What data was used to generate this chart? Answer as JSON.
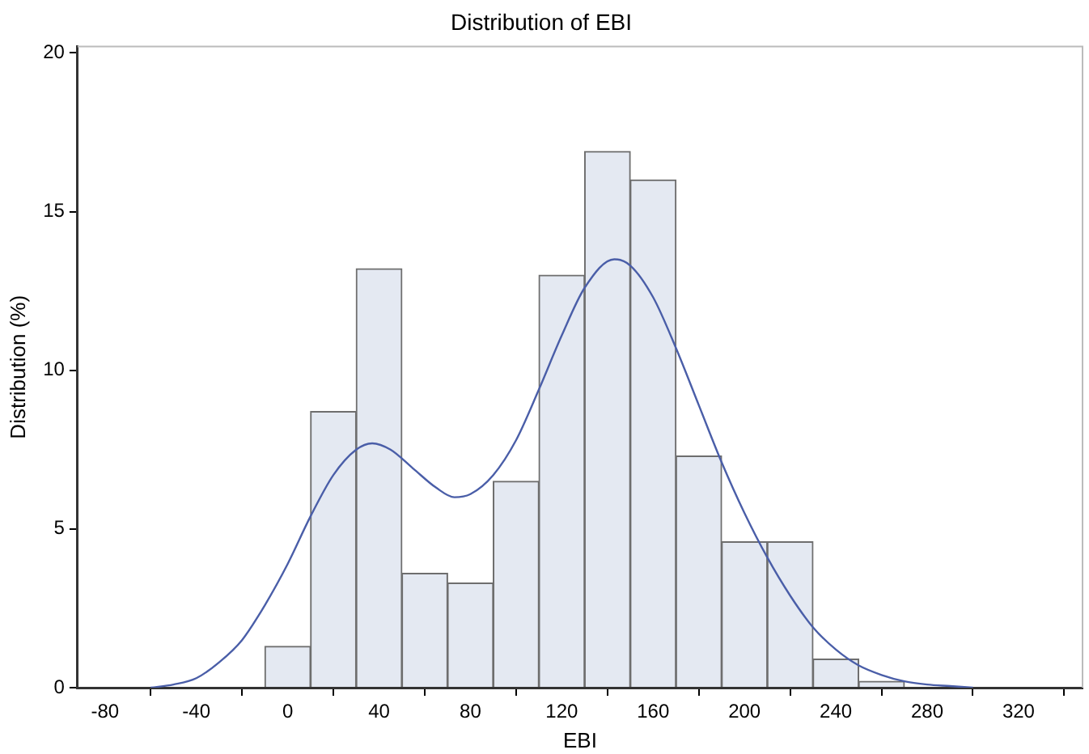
{
  "chart_data": {
    "type": "histogram",
    "title": "Distribution of EBI",
    "xlabel": "EBI",
    "ylabel": "Distribution (%)",
    "bins": [
      -10,
      10,
      30,
      50,
      70,
      90,
      110,
      130,
      150,
      170,
      190,
      210,
      230,
      250,
      270
    ],
    "values": [
      1.3,
      8.7,
      13.2,
      3.6,
      3.3,
      6.5,
      13.0,
      16.9,
      16.0,
      7.3,
      4.6,
      4.6,
      0.9,
      0.2
    ],
    "color": "#e4e9f2",
    "series": [
      {
        "type": "line",
        "color": "#4a5ea8",
        "x": [
          -60,
          -50,
          -40,
          -30,
          -20,
          -10,
          0,
          10,
          20,
          30,
          37,
          45,
          55,
          65,
          73,
          80,
          90,
          100,
          110,
          120,
          130,
          143,
          150,
          160,
          170,
          180,
          190,
          200,
          210,
          220,
          230,
          240,
          250,
          260,
          270,
          280,
          290,
          300
        ],
        "values": [
          0,
          0.1,
          0.3,
          0.8,
          1.5,
          2.6,
          3.9,
          5.4,
          6.7,
          7.5,
          7.7,
          7.5,
          6.9,
          6.3,
          6.0,
          6.1,
          6.7,
          7.8,
          9.4,
          11.1,
          12.6,
          13.5,
          13.3,
          12.3,
          10.7,
          8.9,
          7.1,
          5.5,
          4.1,
          2.9,
          1.9,
          1.2,
          0.7,
          0.4,
          0.2,
          0.1,
          0.05,
          0
        ]
      }
    ],
    "xlim": [
      -92,
      348
    ],
    "xticks": [
      -80,
      -40,
      0,
      40,
      80,
      120,
      160,
      200,
      240,
      280,
      320
    ],
    "ylim": [
      0,
      20.2
    ],
    "yticks": [
      0,
      5,
      10,
      15,
      20
    ],
    "grid": false,
    "legend": false
  }
}
